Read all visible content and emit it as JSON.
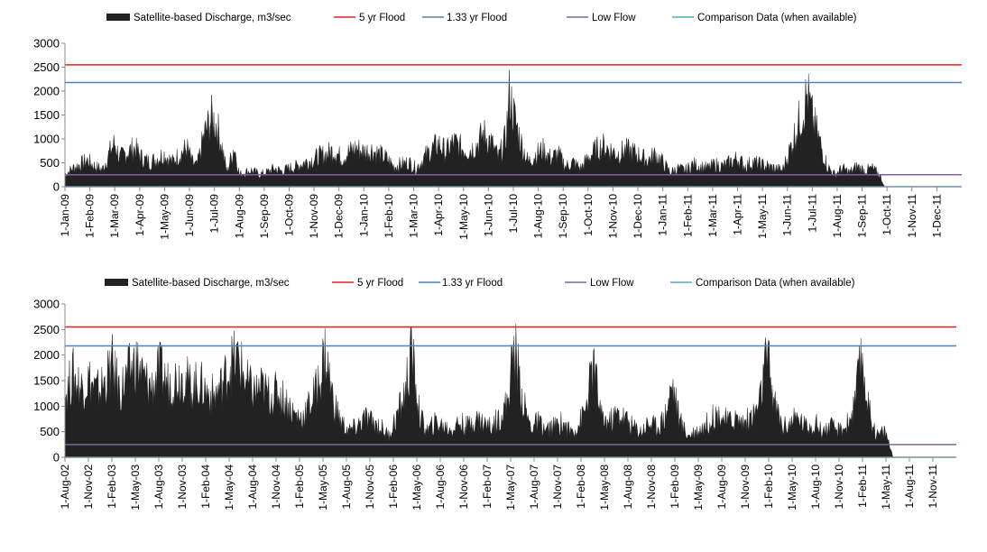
{
  "chart_data": [
    {
      "type": "area",
      "id": "chart-2009-2011",
      "legend_position": "top",
      "legend": [
        {
          "label": "Satellite-based Discharge, m3/sec",
          "color": "#222222",
          "kind": "area"
        },
        {
          "label": "5 yr Flood",
          "color": "#e02020",
          "kind": "line"
        },
        {
          "label": "1.33 yr Flood",
          "color": "#4f81bd",
          "kind": "line"
        },
        {
          "label": "Low Flow",
          "color": "#8064a2",
          "kind": "line"
        },
        {
          "label": "Comparison Data (when available)",
          "color": "#4bacc6",
          "kind": "line"
        }
      ],
      "y_ticks": [
        "0",
        "500",
        "1000",
        "1500",
        "2000",
        "2500",
        "3000"
      ],
      "ylim": [
        0,
        3000
      ],
      "x_ticks": [
        "1-Jan-09",
        "1-Feb-09",
        "1-Mar-09",
        "1-Apr-09",
        "1-May-09",
        "1-Jun-09",
        "1-Jul-09",
        "1-Aug-09",
        "1-Sep-09",
        "1-Oct-09",
        "1-Nov-09",
        "1-Dec-09",
        "1-Jan-10",
        "1-Feb-10",
        "1-Mar-10",
        "1-Apr-10",
        "1-May-10",
        "1-Jun-10",
        "1-Jul-10",
        "1-Aug-10",
        "1-Sep-10",
        "1-Oct-10",
        "1-Nov-10",
        "1-Dec-10",
        "1-Jan-11",
        "1-Feb-11",
        "1-Mar-11",
        "1-Apr-11",
        "1-May-11",
        "1-Jun-11",
        "1-Jul-11",
        "1-Aug-11",
        "1-Sep-11",
        "1-Oct-11",
        "1-Nov-11",
        "1-Dec-11"
      ],
      "xlim": [
        "2009-01-01",
        "2012-01-01"
      ],
      "x_unit": "months",
      "thresholds": {
        "flood_5yr": 2550,
        "flood_1_33yr": 2180,
        "low_flow": 250,
        "comparison": 0
      },
      "discharge_series": [
        [
          0,
          300
        ],
        [
          0.3,
          450
        ],
        [
          0.6,
          550
        ],
        [
          0.9,
          650
        ],
        [
          1.2,
          500
        ],
        [
          1.5,
          420
        ],
        [
          1.8,
          850
        ],
        [
          2.0,
          1070
        ],
        [
          2.2,
          700
        ],
        [
          2.5,
          850
        ],
        [
          2.8,
          950
        ],
        [
          3.1,
          700
        ],
        [
          3.4,
          600
        ],
        [
          3.7,
          700
        ],
        [
          4.0,
          800
        ],
        [
          4.3,
          600
        ],
        [
          4.6,
          800
        ],
        [
          4.9,
          950
        ],
        [
          5.1,
          600
        ],
        [
          5.3,
          500
        ],
        [
          5.6,
          1300
        ],
        [
          5.9,
          1700
        ],
        [
          6.1,
          1500
        ],
        [
          6.3,
          1000
        ],
        [
          6.5,
          350
        ],
        [
          6.8,
          1000
        ],
        [
          7.0,
          300
        ],
        [
          7.2,
          350
        ],
        [
          7.5,
          400
        ],
        [
          7.8,
          300
        ],
        [
          8.1,
          350
        ],
        [
          8.4,
          450
        ],
        [
          8.7,
          380
        ],
        [
          9.0,
          450
        ],
        [
          9.3,
          500
        ],
        [
          9.6,
          600
        ],
        [
          9.9,
          650
        ],
        [
          10.2,
          750
        ],
        [
          10.5,
          800
        ],
        [
          10.8,
          900
        ],
        [
          11.1,
          700
        ],
        [
          11.4,
          850
        ],
        [
          11.7,
          950
        ],
        [
          12.0,
          850
        ],
        [
          12.3,
          900
        ],
        [
          12.6,
          800
        ],
        [
          12.9,
          700
        ],
        [
          13.2,
          500
        ],
        [
          13.5,
          550
        ],
        [
          13.8,
          600
        ],
        [
          14.1,
          450
        ],
        [
          14.4,
          700
        ],
        [
          14.7,
          900
        ],
        [
          15.0,
          1050
        ],
        [
          15.3,
          850
        ],
        [
          15.6,
          1100
        ],
        [
          15.9,
          950
        ],
        [
          16.2,
          900
        ],
        [
          16.5,
          1000
        ],
        [
          16.8,
          1300
        ],
        [
          17.1,
          1100
        ],
        [
          17.4,
          700
        ],
        [
          17.7,
          1200
        ],
        [
          17.85,
          2300
        ],
        [
          18.0,
          1800
        ],
        [
          18.3,
          1100
        ],
        [
          18.6,
          600
        ],
        [
          18.9,
          800
        ],
        [
          19.2,
          900
        ],
        [
          19.5,
          700
        ],
        [
          19.8,
          800
        ],
        [
          20.1,
          500
        ],
        [
          20.4,
          600
        ],
        [
          20.7,
          450
        ],
        [
          21.0,
          700
        ],
        [
          21.3,
          900
        ],
        [
          21.6,
          1000
        ],
        [
          21.9,
          900
        ],
        [
          22.2,
          800
        ],
        [
          22.5,
          900
        ],
        [
          22.8,
          850
        ],
        [
          23.1,
          750
        ],
        [
          23.4,
          650
        ],
        [
          23.7,
          800
        ],
        [
          24.0,
          600
        ],
        [
          24.3,
          350
        ],
        [
          24.6,
          450
        ],
        [
          24.9,
          400
        ],
        [
          25.2,
          550
        ],
        [
          25.5,
          500
        ],
        [
          25.8,
          450
        ],
        [
          26.1,
          550
        ],
        [
          26.4,
          500
        ],
        [
          26.7,
          600
        ],
        [
          27.0,
          700
        ],
        [
          27.3,
          500
        ],
        [
          27.6,
          600
        ],
        [
          27.9,
          550
        ],
        [
          28.2,
          500
        ],
        [
          28.5,
          450
        ],
        [
          28.8,
          400
        ],
        [
          29.1,
          900
        ],
        [
          29.4,
          1500
        ],
        [
          29.6,
          1800
        ],
        [
          29.8,
          2280
        ],
        [
          30.0,
          1700
        ],
        [
          30.2,
          1300
        ],
        [
          30.4,
          900
        ],
        [
          30.6,
          500
        ],
        [
          30.9,
          300
        ],
        [
          31.2,
          450
        ],
        [
          31.5,
          350
        ],
        [
          31.8,
          500
        ],
        [
          32.1,
          400
        ],
        [
          32.4,
          450
        ],
        [
          32.7,
          300
        ],
        [
          32.9,
          0
        ]
      ]
    },
    {
      "type": "area",
      "id": "chart-2002-2011",
      "legend_position": "top",
      "legend": [
        {
          "label": "Satellite-based Discharge, m3/sec",
          "color": "#222222",
          "kind": "area"
        },
        {
          "label": "5 yr Flood",
          "color": "#e02020",
          "kind": "line"
        },
        {
          "label": "1.33 yr Flood",
          "color": "#4f81bd",
          "kind": "line"
        },
        {
          "label": "Low Flow",
          "color": "#8064a2",
          "kind": "line"
        },
        {
          "label": "Comparison Data (when available)",
          "color": "#4bacc6",
          "kind": "line"
        }
      ],
      "y_ticks": [
        "0",
        "500",
        "1000",
        "1500",
        "2000",
        "2500",
        "3000"
      ],
      "ylim": [
        0,
        3000
      ],
      "x_ticks": [
        "1-Aug-02",
        "1-Nov-02",
        "1-Feb-03",
        "1-May-03",
        "1-Aug-03",
        "1-Nov-03",
        "1-Feb-04",
        "1-May-04",
        "1-Aug-04",
        "1-Nov-04",
        "1-Feb-05",
        "1-May-05",
        "1-Aug-05",
        "1-Nov-05",
        "1-Feb-06",
        "1-May-06",
        "1-Aug-06",
        "1-Nov-06",
        "1-Feb-07",
        "1-May-07",
        "1-Aug-07",
        "1-Nov-07",
        "1-Feb-08",
        "1-May-08",
        "1-Aug-08",
        "1-Nov-08",
        "1-Feb-09",
        "1-May-09",
        "1-Aug-09",
        "1-Nov-09",
        "1-Feb-10",
        "1-May-10",
        "1-Aug-10",
        "1-Nov-10",
        "1-Feb-11",
        "1-May-11",
        "1-Aug-11",
        "1-Nov-11"
      ],
      "xlim": [
        "2002-08-01",
        "2012-01-01"
      ],
      "x_unit": "months",
      "thresholds": {
        "flood_5yr": 2550,
        "flood_1_33yr": 2180,
        "low_flow": 250,
        "comparison": 0
      },
      "discharge_series": [
        [
          0,
          1400
        ],
        [
          1,
          1900
        ],
        [
          2,
          1600
        ],
        [
          3,
          1800
        ],
        [
          4,
          1500
        ],
        [
          5,
          1700
        ],
        [
          6,
          2100
        ],
        [
          7,
          1500
        ],
        [
          8,
          1900
        ],
        [
          9,
          2200
        ],
        [
          10,
          1800
        ],
        [
          11,
          1600
        ],
        [
          12,
          2000
        ],
        [
          13,
          1700
        ],
        [
          14,
          1800
        ],
        [
          15,
          1900
        ],
        [
          16,
          1600
        ],
        [
          17,
          1700
        ],
        [
          18,
          1500
        ],
        [
          19,
          1400
        ],
        [
          20,
          1700
        ],
        [
          21,
          2150
        ],
        [
          22,
          2250
        ],
        [
          23,
          1700
        ],
        [
          24,
          1500
        ],
        [
          25,
          1600
        ],
        [
          26,
          1400
        ],
        [
          27,
          1500
        ],
        [
          28,
          1300
        ],
        [
          29,
          1000
        ],
        [
          30,
          900
        ],
        [
          31,
          1200
        ],
        [
          32,
          1600
        ],
        [
          33,
          2400
        ],
        [
          34,
          1300
        ],
        [
          35,
          800
        ],
        [
          36,
          600
        ],
        [
          37,
          700
        ],
        [
          38,
          900
        ],
        [
          39,
          800
        ],
        [
          40,
          700
        ],
        [
          41,
          500
        ],
        [
          42,
          900
        ],
        [
          43,
          1400
        ],
        [
          44,
          2420
        ],
        [
          45,
          900
        ],
        [
          46,
          600
        ],
        [
          47,
          800
        ],
        [
          48,
          700
        ],
        [
          49,
          650
        ],
        [
          50,
          800
        ],
        [
          51,
          700
        ],
        [
          52,
          900
        ],
        [
          53,
          800
        ],
        [
          54,
          700
        ],
        [
          55,
          900
        ],
        [
          56,
          1200
        ],
        [
          57,
          2550
        ],
        [
          58,
          1300
        ],
        [
          59,
          700
        ],
        [
          60,
          800
        ],
        [
          61,
          600
        ],
        [
          62,
          700
        ],
        [
          63,
          800
        ],
        [
          64,
          600
        ],
        [
          65,
          700
        ],
        [
          66,
          1100
        ],
        [
          67,
          2150
        ],
        [
          68,
          900
        ],
        [
          69,
          800
        ],
        [
          70,
          1000
        ],
        [
          71,
          900
        ],
        [
          72,
          700
        ],
        [
          73,
          600
        ],
        [
          74,
          800
        ],
        [
          75,
          700
        ],
        [
          76,
          900
        ],
        [
          77,
          1700
        ],
        [
          78,
          800
        ],
        [
          79,
          500
        ],
        [
          80,
          600
        ],
        [
          81,
          700
        ],
        [
          82,
          900
        ],
        [
          83,
          1000
        ],
        [
          84,
          800
        ],
        [
          85,
          900
        ],
        [
          86,
          800
        ],
        [
          87,
          900
        ],
        [
          88,
          1200
        ],
        [
          89,
          2300
        ],
        [
          90,
          1200
        ],
        [
          91,
          700
        ],
        [
          92,
          800
        ],
        [
          93,
          900
        ],
        [
          94,
          700
        ],
        [
          95,
          800
        ],
        [
          96,
          600
        ],
        [
          97,
          700
        ],
        [
          98,
          600
        ],
        [
          99,
          700
        ],
        [
          100,
          1100
        ],
        [
          101,
          2280
        ],
        [
          102,
          1000
        ],
        [
          103,
          500
        ],
        [
          104,
          600
        ],
        [
          105,
          0
        ]
      ]
    }
  ]
}
